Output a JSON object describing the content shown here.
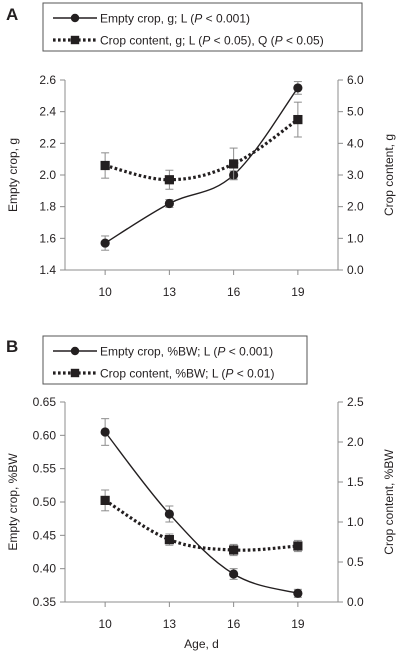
{
  "chart_data": [
    {
      "type": "line",
      "panel_label": "A",
      "x": [
        10,
        13,
        16,
        19
      ],
      "xticks": [
        "10",
        "13",
        "16",
        "19"
      ],
      "xlabel": "",
      "y_left": {
        "label": "Empty crop, g",
        "range": [
          1.4,
          2.6
        ],
        "ticks": [
          "1.4",
          "1.6",
          "1.8",
          "2.0",
          "2.2",
          "2.4",
          "2.6"
        ]
      },
      "y_right": {
        "label": "Crop content, g",
        "range": [
          0.0,
          6.0
        ],
        "ticks": [
          "0.0",
          "1.0",
          "2.0",
          "3.0",
          "4.0",
          "5.0",
          "6.0"
        ]
      },
      "series": [
        {
          "name": "Empty crop, g; L (P < 0.001)",
          "axis": "left",
          "style": "solid",
          "marker": "circle",
          "values": [
            1.57,
            1.82,
            2.0,
            2.55
          ],
          "errors": [
            0.045,
            0.025,
            0.025,
            0.04
          ]
        },
        {
          "name": "Crop content, g; L (P < 0.05), Q (P < 0.05)",
          "axis": "right",
          "style": "dotted",
          "marker": "square",
          "values": [
            3.3,
            2.85,
            3.35,
            4.75
          ],
          "errors": [
            0.4,
            0.3,
            0.5,
            0.55
          ]
        }
      ]
    },
    {
      "type": "line",
      "panel_label": "B",
      "x": [
        10,
        13,
        16,
        19
      ],
      "xticks": [
        "10",
        "13",
        "16",
        "19"
      ],
      "xlabel": "Age, d",
      "y_left": {
        "label": "Empty crop, %BW",
        "range": [
          0.35,
          0.65
        ],
        "ticks": [
          "0.35",
          "0.40",
          "0.45",
          "0.50",
          "0.55",
          "0.60",
          "0.65"
        ]
      },
      "y_right": {
        "label": "Crop content, %BW",
        "range": [
          0.0,
          2.5
        ],
        "ticks": [
          "0.0",
          "0.5",
          "1.0",
          "1.5",
          "2.0",
          "2.5"
        ]
      },
      "series": [
        {
          "name": "Empty crop, %BW; L (P < 0.001)",
          "axis": "left",
          "style": "solid",
          "marker": "circle",
          "values": [
            0.605,
            0.482,
            0.392,
            0.363
          ],
          "errors": [
            0.02,
            0.012,
            0.008,
            0.006
          ]
        },
        {
          "name": "Crop content, %BW; L (P < 0.01)",
          "axis": "right",
          "style": "dotted",
          "marker": "square",
          "values": [
            1.27,
            0.78,
            0.65,
            0.7
          ],
          "errors": [
            0.13,
            0.07,
            0.07,
            0.07
          ]
        }
      ]
    }
  ]
}
